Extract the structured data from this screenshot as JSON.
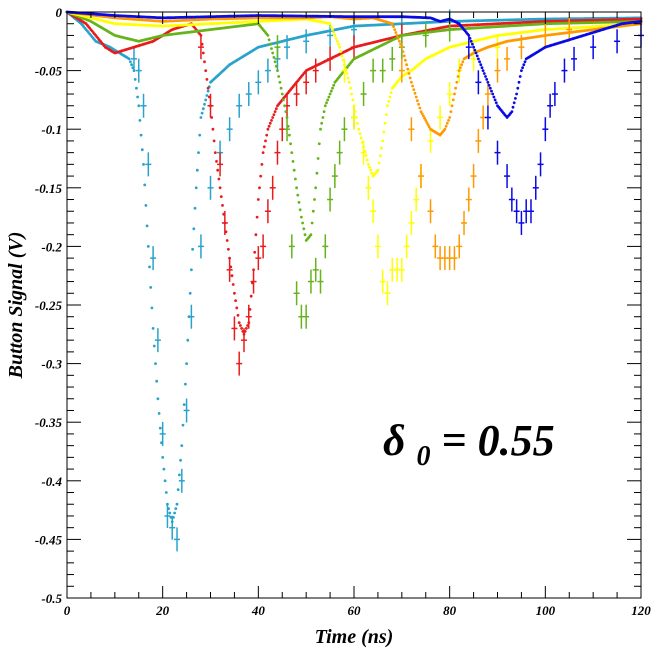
{
  "chart_data": {
    "type": "line",
    "title": "",
    "xlabel": "Time (ns)",
    "ylabel": "Button Signal (V)",
    "xlim": [
      0,
      120
    ],
    "ylim": [
      -0.5,
      0
    ],
    "xticks": [
      0,
      20,
      40,
      60,
      80,
      100,
      120
    ],
    "yticks": [
      0,
      -0.05,
      -0.1,
      -0.15,
      -0.2,
      -0.25,
      -0.3,
      -0.35,
      -0.4,
      -0.45,
      -0.5
    ],
    "xtick_labels": [
      "0",
      "20",
      "40",
      "60",
      "80",
      "100",
      "120"
    ],
    "ytick_labels": [
      "0",
      "-0.05",
      "-0.1",
      "-0.15",
      "-0.2",
      "-0.25",
      "-0.3",
      "-0.35",
      "-0.4",
      "-0.45",
      "-0.5"
    ],
    "grid": false,
    "annotation": {
      "symbol": "δ",
      "subscript": "0",
      "text": " = 0.55"
    },
    "series": [
      {
        "color": "#29a3cc",
        "simulation": [
          [
            0,
            0
          ],
          [
            3,
            -0.01
          ],
          [
            6,
            -0.025
          ],
          [
            9,
            -0.03
          ],
          [
            11,
            -0.035
          ],
          [
            13,
            -0.04
          ],
          [
            14,
            -0.05
          ],
          [
            15,
            -0.08
          ],
          [
            16,
            -0.13
          ],
          [
            17,
            -0.2
          ],
          [
            18,
            -0.27
          ],
          [
            19,
            -0.33
          ],
          [
            20,
            -0.38
          ],
          [
            21,
            -0.42
          ],
          [
            22,
            -0.435
          ],
          [
            23,
            -0.42
          ],
          [
            24,
            -0.37
          ],
          [
            25,
            -0.3
          ],
          [
            26,
            -0.22
          ],
          [
            27,
            -0.15
          ],
          [
            28,
            -0.09
          ],
          [
            30,
            -0.06
          ],
          [
            34,
            -0.045
          ],
          [
            40,
            -0.03
          ],
          [
            50,
            -0.02
          ],
          [
            60,
            -0.012
          ],
          [
            80,
            -0.008
          ],
          [
            100,
            -0.006
          ],
          [
            120,
            -0.005
          ]
        ],
        "measurement": [
          [
            14,
            -0.04
          ],
          [
            15,
            -0.05
          ],
          [
            16,
            -0.08
          ],
          [
            17,
            -0.13
          ],
          [
            18,
            -0.21
          ],
          [
            19,
            -0.28
          ],
          [
            20,
            -0.36
          ],
          [
            21,
            -0.43
          ],
          [
            22,
            -0.44
          ],
          [
            23,
            -0.45
          ],
          [
            24,
            -0.4
          ],
          [
            25,
            -0.34
          ],
          [
            26,
            -0.26
          ],
          [
            28,
            -0.2
          ],
          [
            30,
            -0.15
          ],
          [
            32,
            -0.12
          ],
          [
            34,
            -0.1
          ],
          [
            36,
            -0.08
          ],
          [
            38,
            -0.07
          ],
          [
            40,
            -0.06
          ],
          [
            42,
            -0.05
          ],
          [
            44,
            -0.04
          ],
          [
            46,
            -0.03
          ],
          [
            50,
            -0.025
          ],
          [
            55,
            -0.02
          ],
          [
            60,
            -0.015
          ],
          [
            70,
            -0.01
          ],
          [
            80,
            -0.008
          ]
        ]
      },
      {
        "color": "#e81c1c",
        "simulation": [
          [
            0,
            0
          ],
          [
            4,
            -0.01
          ],
          [
            8,
            -0.03
          ],
          [
            10,
            -0.035
          ],
          [
            14,
            -0.03
          ],
          [
            18,
            -0.025
          ],
          [
            22,
            -0.015
          ],
          [
            26,
            -0.01
          ],
          [
            28,
            -0.02
          ],
          [
            29,
            -0.05
          ],
          [
            30,
            -0.08
          ],
          [
            31,
            -0.12
          ],
          [
            32,
            -0.15
          ],
          [
            33,
            -0.18
          ],
          [
            34,
            -0.21
          ],
          [
            35,
            -0.24
          ],
          [
            36,
            -0.265
          ],
          [
            37,
            -0.275
          ],
          [
            38,
            -0.265
          ],
          [
            39,
            -0.22
          ],
          [
            40,
            -0.16
          ],
          [
            41,
            -0.12
          ],
          [
            42,
            -0.1
          ],
          [
            44,
            -0.08
          ],
          [
            46,
            -0.07
          ],
          [
            50,
            -0.05
          ],
          [
            55,
            -0.04
          ],
          [
            60,
            -0.03
          ],
          [
            70,
            -0.02
          ],
          [
            80,
            -0.012
          ],
          [
            100,
            -0.008
          ],
          [
            120,
            -0.006
          ]
        ],
        "measurement": [
          [
            28,
            -0.03
          ],
          [
            30,
            -0.08
          ],
          [
            32,
            -0.13
          ],
          [
            33,
            -0.18
          ],
          [
            34,
            -0.22
          ],
          [
            35,
            -0.27
          ],
          [
            36,
            -0.3
          ],
          [
            37,
            -0.28
          ],
          [
            38,
            -0.26
          ],
          [
            39,
            -0.23
          ],
          [
            40,
            -0.21
          ],
          [
            41,
            -0.2
          ],
          [
            42,
            -0.17
          ],
          [
            43,
            -0.15
          ],
          [
            44,
            -0.12
          ],
          [
            45,
            -0.1
          ],
          [
            46,
            -0.08
          ],
          [
            48,
            -0.07
          ],
          [
            50,
            -0.06
          ],
          [
            52,
            -0.05
          ],
          [
            55,
            -0.04
          ],
          [
            60,
            -0.03
          ],
          [
            70,
            -0.02
          ]
        ]
      },
      {
        "color": "#66b31a",
        "simulation": [
          [
            0,
            0
          ],
          [
            5,
            -0.008
          ],
          [
            10,
            -0.02
          ],
          [
            15,
            -0.025
          ],
          [
            20,
            -0.02
          ],
          [
            30,
            -0.015
          ],
          [
            40,
            -0.01
          ],
          [
            42,
            -0.02
          ],
          [
            44,
            -0.05
          ],
          [
            46,
            -0.09
          ],
          [
            47,
            -0.12
          ],
          [
            48,
            -0.15
          ],
          [
            49,
            -0.175
          ],
          [
            50,
            -0.195
          ],
          [
            51,
            -0.19
          ],
          [
            52,
            -0.15
          ],
          [
            53,
            -0.1
          ],
          [
            54,
            -0.08
          ],
          [
            55,
            -0.07
          ],
          [
            56,
            -0.06
          ],
          [
            58,
            -0.05
          ],
          [
            60,
            -0.04
          ],
          [
            65,
            -0.03
          ],
          [
            70,
            -0.02
          ],
          [
            80,
            -0.015
          ],
          [
            100,
            -0.01
          ],
          [
            120,
            -0.008
          ]
        ],
        "measurement": [
          [
            44,
            -0.03
          ],
          [
            46,
            -0.1
          ],
          [
            47,
            -0.2
          ],
          [
            48,
            -0.24
          ],
          [
            49,
            -0.26
          ],
          [
            50,
            -0.26
          ],
          [
            51,
            -0.23
          ],
          [
            52,
            -0.22
          ],
          [
            53,
            -0.23
          ],
          [
            54,
            -0.2
          ],
          [
            55,
            -0.16
          ],
          [
            56,
            -0.14
          ],
          [
            57,
            -0.12
          ],
          [
            58,
            -0.1
          ],
          [
            60,
            -0.09
          ],
          [
            62,
            -0.07
          ],
          [
            64,
            -0.05
          ],
          [
            66,
            -0.05
          ],
          [
            68,
            -0.04
          ],
          [
            70,
            -0.03
          ],
          [
            75,
            -0.02
          ],
          [
            80,
            -0.015
          ]
        ]
      },
      {
        "color": "#ffff00",
        "simulation": [
          [
            0,
            0
          ],
          [
            10,
            -0.01
          ],
          [
            20,
            -0.012
          ],
          [
            30,
            -0.01
          ],
          [
            40,
            -0.008
          ],
          [
            50,
            -0.006
          ],
          [
            55,
            -0.01
          ],
          [
            57,
            -0.03
          ],
          [
            59,
            -0.06
          ],
          [
            61,
            -0.1
          ],
          [
            63,
            -0.13
          ],
          [
            64,
            -0.14
          ],
          [
            65,
            -0.135
          ],
          [
            66,
            -0.11
          ],
          [
            67,
            -0.08
          ],
          [
            68,
            -0.065
          ],
          [
            70,
            -0.055
          ],
          [
            72,
            -0.05
          ],
          [
            75,
            -0.04
          ],
          [
            80,
            -0.03
          ],
          [
            90,
            -0.02
          ],
          [
            100,
            -0.015
          ],
          [
            120,
            -0.01
          ]
        ],
        "measurement": [
          [
            58,
            -0.05
          ],
          [
            60,
            -0.09
          ],
          [
            62,
            -0.12
          ],
          [
            63,
            -0.15
          ],
          [
            64,
            -0.17
          ],
          [
            65,
            -0.2
          ],
          [
            66,
            -0.23
          ],
          [
            67,
            -0.24
          ],
          [
            68,
            -0.22
          ],
          [
            69,
            -0.22
          ],
          [
            70,
            -0.22
          ],
          [
            71,
            -0.2
          ],
          [
            72,
            -0.18
          ],
          [
            73,
            -0.16
          ],
          [
            74,
            -0.14
          ],
          [
            76,
            -0.11
          ],
          [
            78,
            -0.09
          ],
          [
            80,
            -0.07
          ],
          [
            82,
            -0.05
          ],
          [
            85,
            -0.04
          ],
          [
            90,
            -0.03
          ]
        ]
      },
      {
        "color": "#ff9900",
        "simulation": [
          [
            0,
            0
          ],
          [
            10,
            -0.005
          ],
          [
            20,
            -0.008
          ],
          [
            30,
            -0.006
          ],
          [
            40,
            -0.005
          ],
          [
            50,
            -0.005
          ],
          [
            55,
            -0.004
          ],
          [
            60,
            -0.006
          ],
          [
            64,
            -0.005
          ],
          [
            68,
            -0.01
          ],
          [
            70,
            -0.03
          ],
          [
            72,
            -0.06
          ],
          [
            74,
            -0.085
          ],
          [
            76,
            -0.1
          ],
          [
            78,
            -0.105
          ],
          [
            79,
            -0.1
          ],
          [
            80,
            -0.09
          ],
          [
            81,
            -0.07
          ],
          [
            82,
            -0.05
          ],
          [
            83,
            -0.04
          ],
          [
            85,
            -0.035
          ],
          [
            88,
            -0.03
          ],
          [
            92,
            -0.025
          ],
          [
            100,
            -0.02
          ],
          [
            110,
            -0.015
          ],
          [
            120,
            -0.01
          ]
        ],
        "measurement": [
          [
            70,
            -0.05
          ],
          [
            72,
            -0.1
          ],
          [
            74,
            -0.14
          ],
          [
            76,
            -0.17
          ],
          [
            77,
            -0.2
          ],
          [
            78,
            -0.21
          ],
          [
            79,
            -0.21
          ],
          [
            80,
            -0.21
          ],
          [
            81,
            -0.21
          ],
          [
            82,
            -0.2
          ],
          [
            83,
            -0.18
          ],
          [
            84,
            -0.16
          ],
          [
            85,
            -0.14
          ],
          [
            86,
            -0.11
          ],
          [
            87,
            -0.09
          ],
          [
            88,
            -0.07
          ],
          [
            90,
            -0.05
          ],
          [
            92,
            -0.04
          ],
          [
            95,
            -0.03
          ],
          [
            100,
            -0.02
          ],
          [
            105,
            -0.015
          ]
        ]
      },
      {
        "color": "#0a0ae6",
        "simulation": [
          [
            0,
            0
          ],
          [
            10,
            -0.003
          ],
          [
            20,
            -0.005
          ],
          [
            40,
            -0.003
          ],
          [
            60,
            -0.004
          ],
          [
            70,
            -0.004
          ],
          [
            76,
            -0.005
          ],
          [
            78,
            -0.008
          ],
          [
            80,
            -0.006
          ],
          [
            82,
            -0.01
          ],
          [
            84,
            -0.02
          ],
          [
            86,
            -0.04
          ],
          [
            88,
            -0.06
          ],
          [
            90,
            -0.08
          ],
          [
            92,
            -0.09
          ],
          [
            93,
            -0.085
          ],
          [
            94,
            -0.07
          ],
          [
            95,
            -0.05
          ],
          [
            96,
            -0.04
          ],
          [
            98,
            -0.035
          ],
          [
            100,
            -0.03
          ],
          [
            104,
            -0.025
          ],
          [
            108,
            -0.02
          ],
          [
            112,
            -0.015
          ],
          [
            116,
            -0.01
          ],
          [
            120,
            -0.008
          ]
        ],
        "measurement": [
          [
            84,
            -0.03
          ],
          [
            86,
            -0.06
          ],
          [
            88,
            -0.09
          ],
          [
            90,
            -0.12
          ],
          [
            92,
            -0.14
          ],
          [
            93,
            -0.16
          ],
          [
            94,
            -0.17
          ],
          [
            95,
            -0.18
          ],
          [
            96,
            -0.17
          ],
          [
            97,
            -0.17
          ],
          [
            98,
            -0.15
          ],
          [
            99,
            -0.13
          ],
          [
            100,
            -0.1
          ],
          [
            101,
            -0.08
          ],
          [
            102,
            -0.07
          ],
          [
            104,
            -0.05
          ],
          [
            106,
            -0.04
          ],
          [
            110,
            -0.03
          ],
          [
            115,
            -0.025
          ],
          [
            120,
            -0.02
          ]
        ]
      }
    ]
  }
}
